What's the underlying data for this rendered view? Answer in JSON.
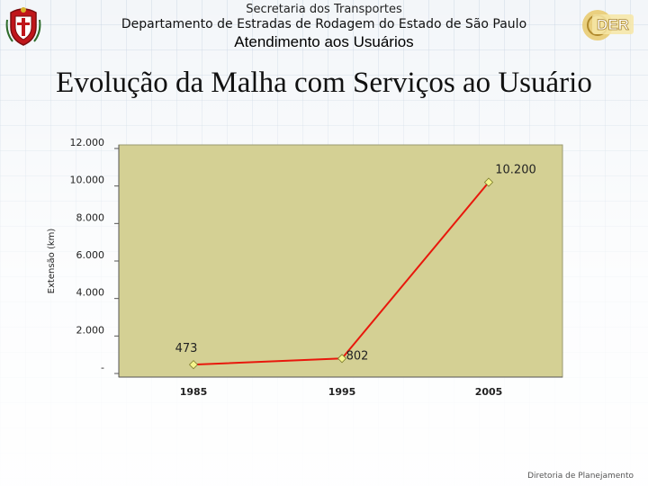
{
  "header": {
    "secretaria": "Secretaria dos Transportes",
    "departamento": "Departamento de Estradas de Rodagem do Estado de São Paulo",
    "atendimento": "Atendimento aos Usuários",
    "left_logo_icon": "sao-paulo-coat-of-arms",
    "right_logo_text": "DER"
  },
  "slide": {
    "title": "Evolução da Malha com Serviços ao Usuário",
    "footer": "Diretoria de Planejamento"
  },
  "colors": {
    "plot_area": "#d4d094",
    "line": "#e8180c",
    "marker": "#f4f48c",
    "axis": "#555555"
  },
  "chart_data": {
    "type": "line",
    "categories": [
      "1985",
      "1995",
      "2005"
    ],
    "series": [
      {
        "values": [
          473,
          802,
          10200
        ]
      }
    ],
    "data_labels": [
      "473",
      "802",
      "10.200"
    ],
    "ylabel": "Extensão (km)",
    "ylim": [
      0,
      12000
    ],
    "yticks": [
      0,
      2000,
      4000,
      6000,
      8000,
      10000,
      12000
    ],
    "ytick_labels": [
      "-",
      "2.000",
      "4.000",
      "6.000",
      "8.000",
      "10.000",
      "12.000"
    ],
    "grid": false,
    "legend": "none"
  }
}
